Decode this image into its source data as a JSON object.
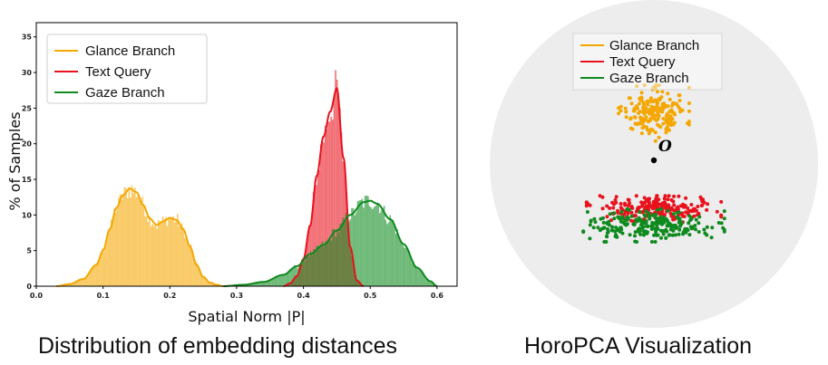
{
  "captions": {
    "left": "Distribution of embedding distances",
    "right": "HoroPCA Visualization"
  },
  "colors": {
    "glance": "#F5A700",
    "text": "#E8121C",
    "gaze": "#0E8A1E",
    "disk": "#EDEDED"
  },
  "chart_data": [
    {
      "type": "histogram",
      "title": "",
      "xlabel": "Spatial Norm |P|",
      "ylabel": "% of Samples",
      "xlim": [
        0.0,
        0.63
      ],
      "ylim": [
        0,
        37
      ],
      "xticks": [
        0.0,
        0.1,
        0.2,
        0.3,
        0.4,
        0.5,
        0.6
      ],
      "xtick_labels": [
        "0.0",
        "0.1",
        "0.2",
        "0.3",
        "0.4",
        "0.5",
        "0.6"
      ],
      "yticks": [
        0,
        5,
        10,
        15,
        20,
        25,
        30,
        35
      ],
      "ytick_labels": [
        "0",
        "5",
        "10",
        "15",
        "20",
        "25",
        "30",
        "35"
      ],
      "legend_position": "top-left",
      "series": [
        {
          "name": "Glance Branch",
          "x": [
            0.03,
            0.05,
            0.07,
            0.09,
            0.1,
            0.11,
            0.12,
            0.13,
            0.14,
            0.15,
            0.16,
            0.17,
            0.18,
            0.19,
            0.2,
            0.21,
            0.22,
            0.23,
            0.24,
            0.25,
            0.26,
            0.27,
            0.28
          ],
          "y": [
            0,
            0.3,
            1.0,
            3.0,
            5.0,
            8.0,
            11.0,
            12.8,
            13.7,
            13.2,
            11.4,
            9.5,
            8.6,
            9.1,
            9.6,
            9.3,
            8.0,
            5.6,
            3.0,
            1.3,
            0.5,
            0.2,
            0
          ]
        },
        {
          "name": "Text Query",
          "x": [
            0.37,
            0.38,
            0.39,
            0.4,
            0.41,
            0.42,
            0.43,
            0.44,
            0.45,
            0.46,
            0.47,
            0.48,
            0.49
          ],
          "y": [
            0,
            0.4,
            1.4,
            3.8,
            8.5,
            15.5,
            21.0,
            24.5,
            27.8,
            18.0,
            5.5,
            0.8,
            0
          ]
        },
        {
          "name": "Gaze Branch",
          "x": [
            0.28,
            0.31,
            0.34,
            0.37,
            0.39,
            0.41,
            0.43,
            0.45,
            0.47,
            0.49,
            0.5,
            0.51,
            0.53,
            0.55,
            0.57,
            0.59,
            0.6
          ],
          "y": [
            0,
            0.2,
            0.6,
            1.6,
            2.8,
            4.5,
            5.8,
            7.8,
            10.0,
            11.8,
            12.0,
            11.6,
            9.4,
            5.9,
            2.6,
            0.7,
            0
          ]
        }
      ]
    },
    {
      "type": "scatter",
      "title": "",
      "origin_label": "O",
      "legend_position": "top-center",
      "series": [
        {
          "name": "Glance Branch",
          "count": 190,
          "center": [
            0.0,
            0.62
          ],
          "spread": [
            0.43,
            0.34
          ]
        },
        {
          "name": "Text Query",
          "count": 230,
          "center": [
            0.0,
            -0.55
          ],
          "spread": [
            0.82,
            0.16
          ]
        },
        {
          "name": "Gaze Branch",
          "count": 240,
          "center": [
            0.0,
            -0.75
          ],
          "spread": [
            0.86,
            0.2
          ]
        }
      ]
    }
  ]
}
